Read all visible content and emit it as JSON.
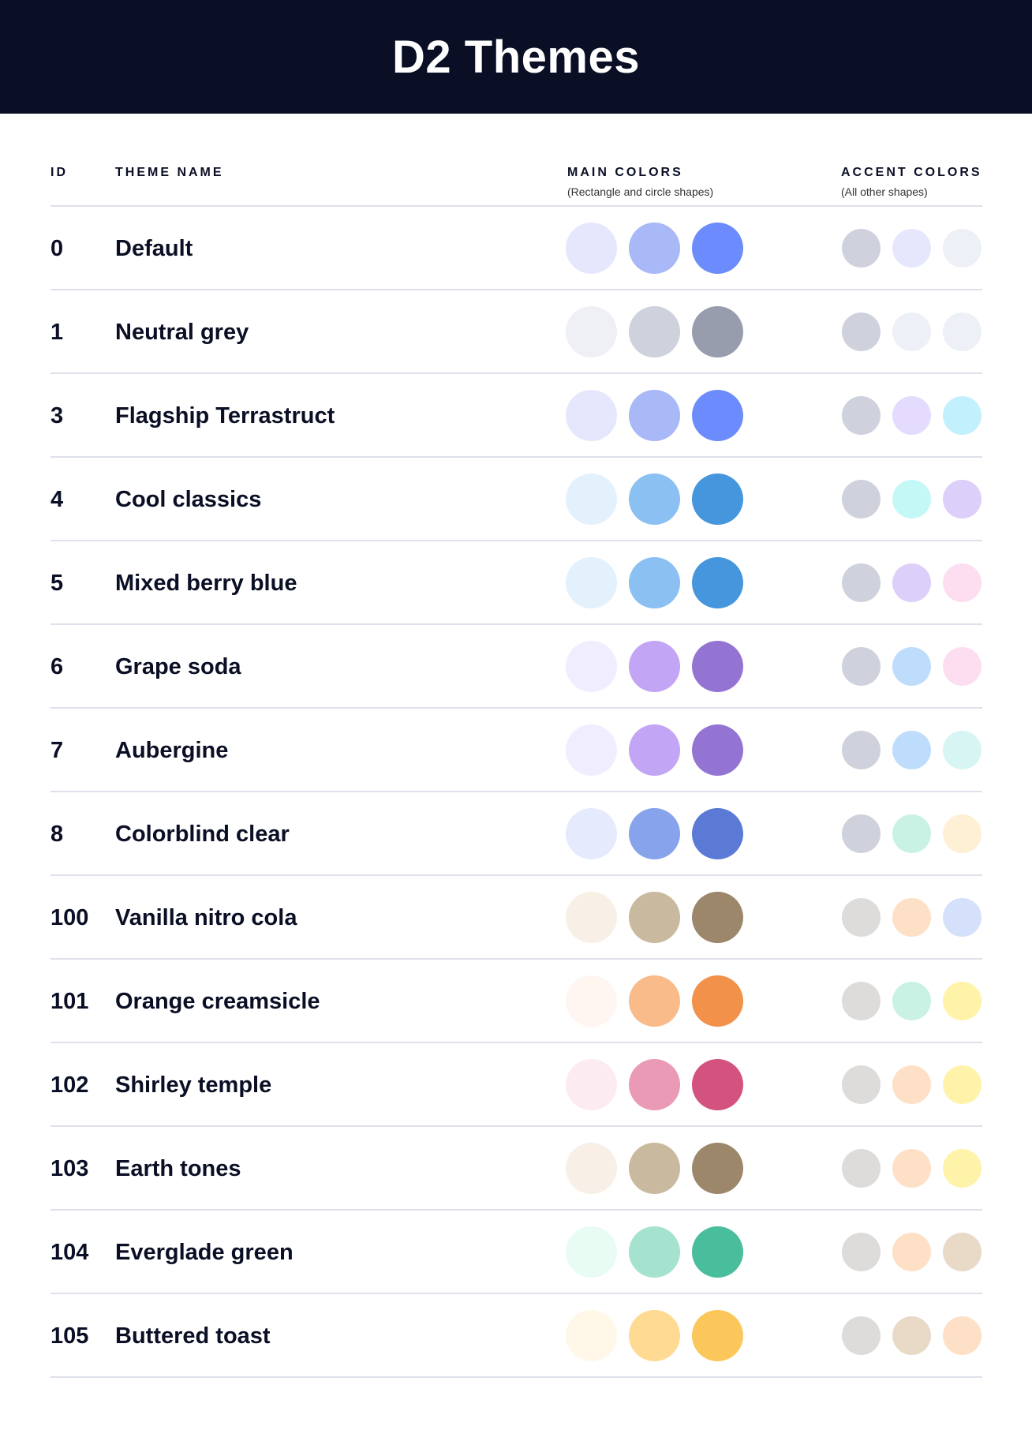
{
  "title": "D2 Themes",
  "columns": {
    "id": "ID",
    "name": "THEME NAME",
    "main": "MAIN COLORS",
    "main_sub": "(Rectangle and circle shapes)",
    "accent": "ACCENT COLORS",
    "accent_sub": "(All other shapes)"
  },
  "themes": [
    {
      "id": "0",
      "name": "Default",
      "main": [
        "#E5E8FC",
        "#A9B8F6",
        "#6C8BFC"
      ],
      "accent": [
        "#CFD2DD",
        "#E5E8FC",
        "#EEF0F7"
      ]
    },
    {
      "id": "1",
      "name": "Neutral grey",
      "main": [
        "#EEF0F6",
        "#CFD2DD",
        "#989DAE"
      ],
      "accent": [
        "#CFD2DD",
        "#EEF0F7",
        "#EEF0F7"
      ]
    },
    {
      "id": "3",
      "name": "Flagship Terrastruct",
      "main": [
        "#E5E8FC",
        "#A9B8F6",
        "#6C8BFC"
      ],
      "accent": [
        "#CFD2DD",
        "#E4DBFE",
        "#C3F0FD"
      ]
    },
    {
      "id": "4",
      "name": "Cool classics",
      "main": [
        "#E3F1FD",
        "#8BC0F3",
        "#4596DD"
      ],
      "accent": [
        "#CFD2DD",
        "#C3F8F6",
        "#DCCFF9"
      ]
    },
    {
      "id": "5",
      "name": "Mixed berry blue",
      "main": [
        "#E3F1FD",
        "#8BC0F3",
        "#4596DD"
      ],
      "accent": [
        "#CFD2DD",
        "#DCCFF9",
        "#FDDEF0"
      ]
    },
    {
      "id": "6",
      "name": "Grape soda",
      "main": [
        "#F0EEFE",
        "#C3A5F5",
        "#9474D3"
      ],
      "accent": [
        "#CFD2DD",
        "#BEDCFC",
        "#FDDEF0"
      ]
    },
    {
      "id": "7",
      "name": "Aubergine",
      "main": [
        "#F0EEFE",
        "#C3A5F5",
        "#9474D3"
      ],
      "accent": [
        "#CFD2DD",
        "#BEDCFC",
        "#D7F5F3"
      ]
    },
    {
      "id": "8",
      "name": "Colorblind clear",
      "main": [
        "#E5EBFD",
        "#87A3EC",
        "#5A7AD6"
      ],
      "accent": [
        "#CFD2DD",
        "#C9F2E4",
        "#FEF0D5"
      ]
    },
    {
      "id": "100",
      "name": "Vanilla nitro cola",
      "main": [
        "#F8F0E6",
        "#C9B99F",
        "#9C876B"
      ],
      "accent": [
        "#DEDCDA",
        "#FEE0C6",
        "#D5E0FA"
      ]
    },
    {
      "id": "101",
      "name": "Orange creamsicle",
      "main": [
        "#FFF6F1",
        "#FABB8A",
        "#F2924A"
      ],
      "accent": [
        "#DEDCDA",
        "#C9F2E4",
        "#FFF3AA"
      ]
    },
    {
      "id": "102",
      "name": "Shirley temple",
      "main": [
        "#FCEBF1",
        "#EA9AB6",
        "#D3527F"
      ],
      "accent": [
        "#DEDCDA",
        "#FEE0C6",
        "#FFF3AA"
      ]
    },
    {
      "id": "103",
      "name": "Earth tones",
      "main": [
        "#F8F0E6",
        "#C9B99F",
        "#9C876B"
      ],
      "accent": [
        "#DEDCDA",
        "#FEE0C6",
        "#FFF3AA"
      ]
    },
    {
      "id": "104",
      "name": "Everglade green",
      "main": [
        "#E8FCF4",
        "#A5E3D0",
        "#49BD9C"
      ],
      "accent": [
        "#DEDCDA",
        "#FEE0C6",
        "#E8DAC7"
      ]
    },
    {
      "id": "105",
      "name": "Buttered toast",
      "main": [
        "#FFF7E8",
        "#FFDA93",
        "#FBC75B"
      ],
      "accent": [
        "#DEDCDA",
        "#E8DAC7",
        "#FEE0C6"
      ]
    }
  ]
}
